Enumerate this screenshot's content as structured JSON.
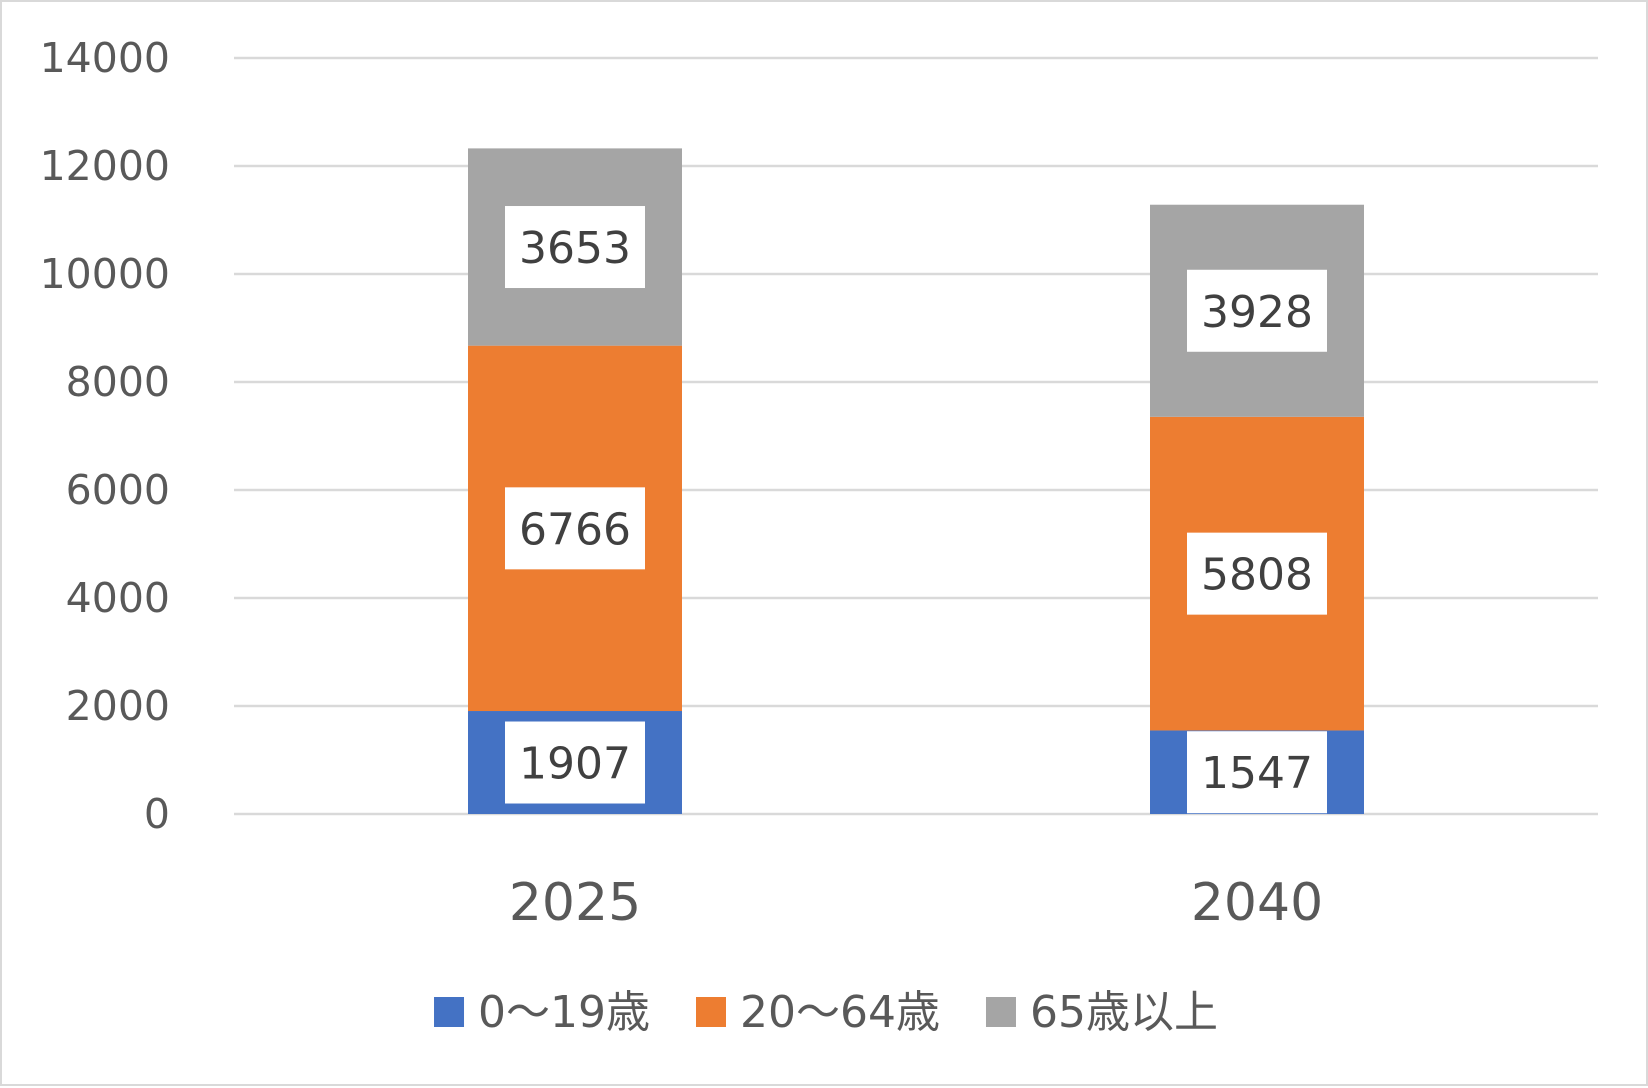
{
  "chart_data": {
    "type": "bar",
    "stacked": true,
    "categories": [
      "2025",
      "2040"
    ],
    "series": [
      {
        "name": "0〜19歳",
        "values": [
          1907,
          1547
        ],
        "color": "#4472c4"
      },
      {
        "name": "20〜64歳",
        "values": [
          6766,
          5808
        ],
        "color": "#ed7d31"
      },
      {
        "name": "65歳以上",
        "values": [
          3653,
          3928
        ],
        "color": "#a5a5a5"
      }
    ],
    "ylim": [
      0,
      14000
    ],
    "yticks": [
      "0",
      "2000",
      "4000",
      "6000",
      "8000",
      "10000",
      "12000",
      "14000"
    ],
    "grid": true,
    "legend_position": "bottom",
    "data_labels": true
  }
}
